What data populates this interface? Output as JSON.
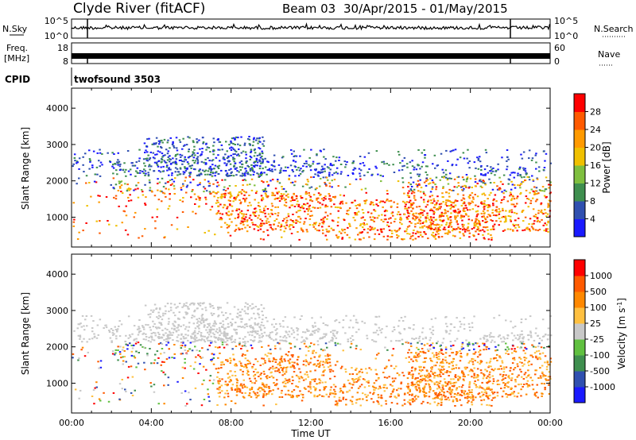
{
  "header": {
    "title": "Clyde River (fitACF)",
    "beam": "Beam 03",
    "date_range": "30/Apr/2015 - 01/May/2015"
  },
  "noise_panel": {
    "left_label": "N.Sky",
    "left_tick_top": "10^5",
    "left_tick_bottom": "10^0",
    "right_label": "N.Search",
    "right_tick_top": "10^5",
    "right_tick_bottom": "10^0"
  },
  "freq_panel": {
    "left_label_1": "Freq.",
    "left_label_2": "[MHz]",
    "left_tick_top": "18",
    "left_tick_bottom": "8",
    "right_label": "Nave",
    "right_tick_top": "60",
    "right_tick_bottom": "0"
  },
  "cpid_panel": {
    "label": "CPID",
    "value": "twofsound 3503"
  },
  "colors": {
    "power_scale": [
      "#1a1aff",
      "#3050b0",
      "#3f8f4f",
      "#7fbf3f",
      "#f0c000",
      "#ff9a00",
      "#ff5a00",
      "#ff0000"
    ],
    "velocity_scale": [
      "#1a1aff",
      "#3050b0",
      "#3f8f4f",
      "#60c040",
      "#c8c8c8",
      "#ffc040",
      "#ff8800",
      "#ff5a00",
      "#ff0000"
    ]
  },
  "chart_data": [
    {
      "type": "heatmap",
      "title": "",
      "ylabel": "Slant Range [km]",
      "xlabel": "",
      "x_tick_labels": [
        "00:00",
        "04:00",
        "08:00",
        "12:00",
        "16:00",
        "20:00",
        "00:00"
      ],
      "y_tick_labels": [
        "1000",
        "2000",
        "3000",
        "4000"
      ],
      "y_ticks": [
        1000,
        2000,
        3000,
        4000
      ],
      "ylim": [
        180,
        4550
      ],
      "xlim_hours": [
        0,
        24
      ],
      "colorbar": {
        "label": "Power [dB]",
        "tick_labels": [
          "4",
          "8",
          "12",
          "16",
          "20",
          "24",
          "28"
        ]
      }
    },
    {
      "type": "heatmap",
      "title": "",
      "ylabel": "Slant Range [km]",
      "xlabel": "Time UT",
      "x_tick_labels": [
        "00:00",
        "04:00",
        "08:00",
        "12:00",
        "16:00",
        "20:00",
        "00:00"
      ],
      "y_tick_labels": [
        "1000",
        "2000",
        "3000",
        "4000"
      ],
      "y_ticks": [
        1000,
        2000,
        3000,
        4000
      ],
      "ylim": [
        180,
        4550
      ],
      "xlim_hours": [
        0,
        24
      ],
      "colorbar": {
        "label": "Velocity [m s^-1]",
        "tick_labels": [
          "1000",
          "500",
          "100",
          "25",
          "-25",
          "-100",
          "-500",
          "-1000"
        ]
      }
    }
  ]
}
